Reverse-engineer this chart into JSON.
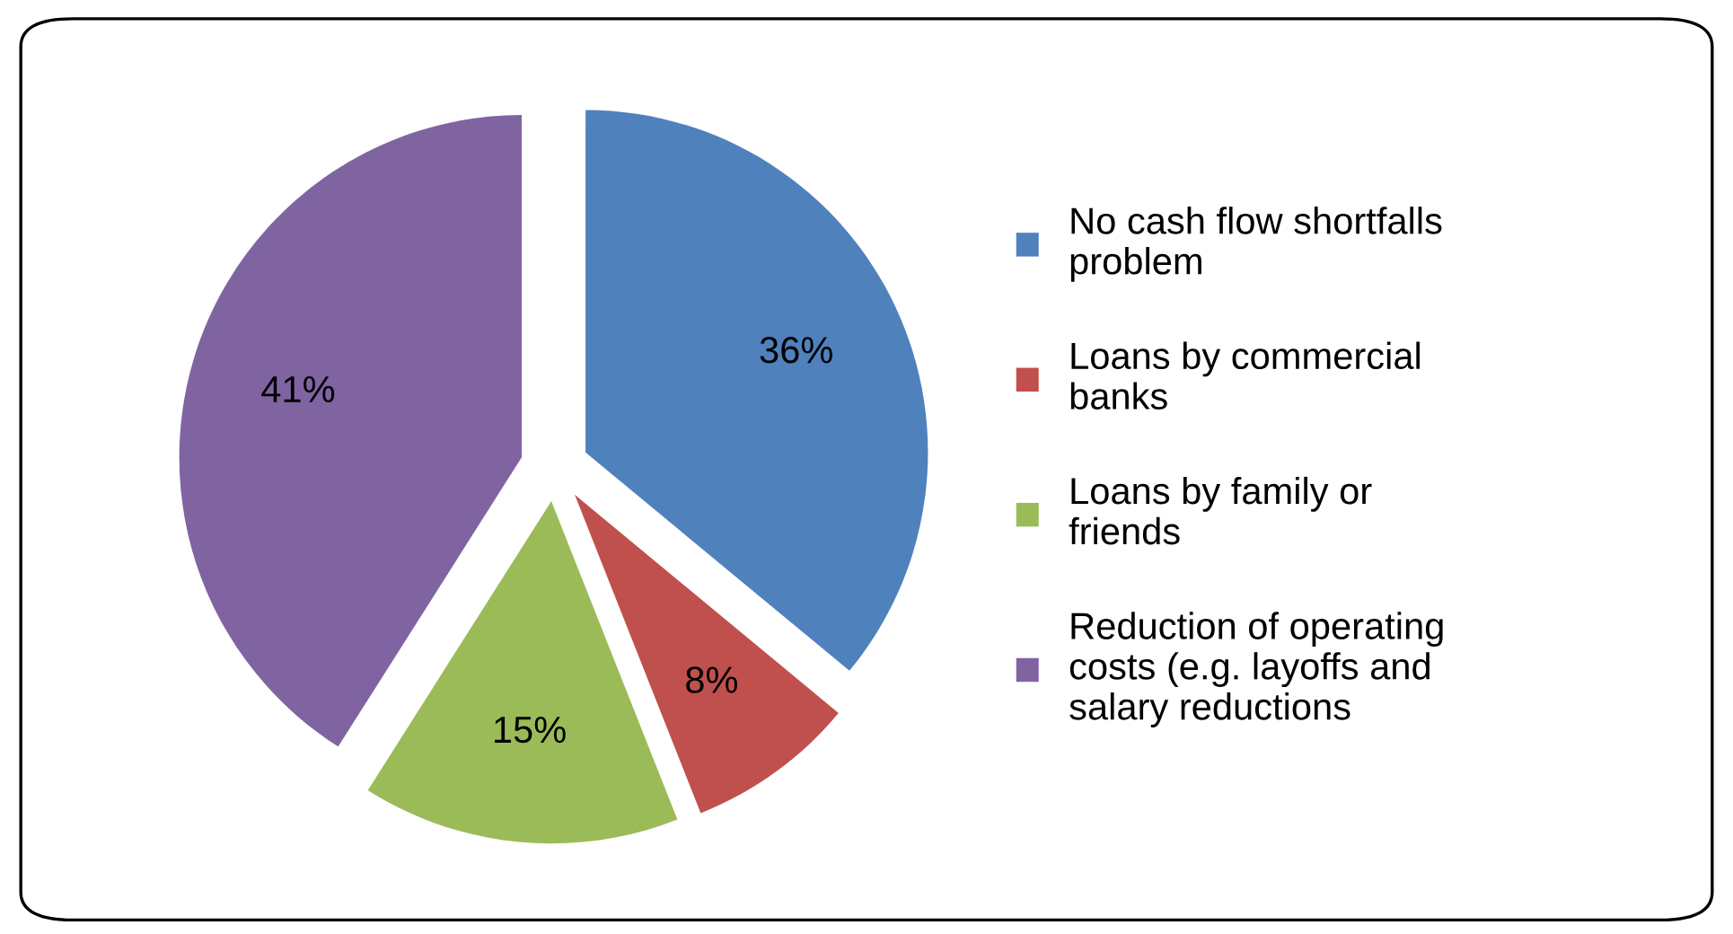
{
  "chart_data": {
    "type": "pie",
    "categories": [
      "No cash flow shortfalls problem",
      "Loans by commercial banks",
      "Loans by family or friends",
      "Reduction of operating costs (e.g. layoffs and salary reductions"
    ],
    "values": [
      36,
      8,
      15,
      41
    ],
    "colors": [
      "#4f81bd",
      "#c0504d",
      "#9bbb59",
      "#8064a2"
    ],
    "value_labels": [
      "36%",
      "8%",
      "15%",
      "41%"
    ],
    "legend": "right"
  }
}
